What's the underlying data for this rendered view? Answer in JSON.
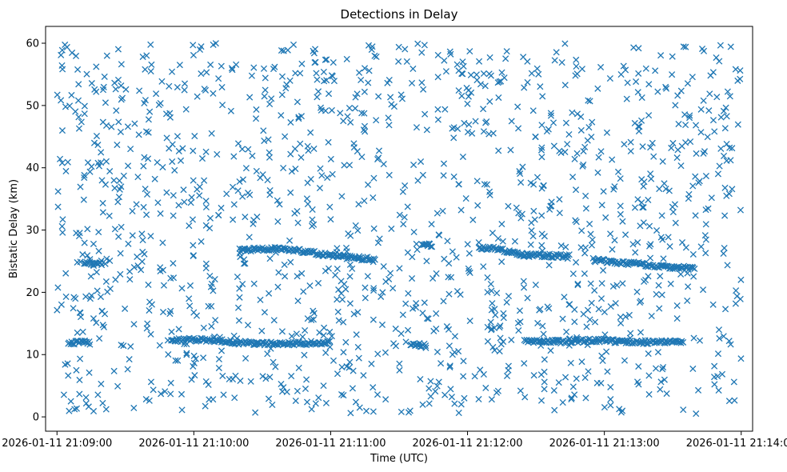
{
  "chart_data": {
    "type": "scatter",
    "title": "Detections in Delay",
    "xlabel": "Time (UTC)",
    "ylabel": "Bistatic Delay (km)",
    "x_ticks": [
      "2026-01-11 21:09:00",
      "2026-01-11 21:10:00",
      "2026-01-11 21:11:00",
      "2026-01-11 21:12:00",
      "2026-01-11 21:13:00",
      "2026-01-11 21:14:00"
    ],
    "xlim": [
      "2026-01-11 21:08:55",
      "2026-01-11 21:14:05"
    ],
    "y_ticks": [
      0,
      10,
      20,
      30,
      40,
      50,
      60
    ],
    "ylim": [
      -2.3,
      62.7
    ],
    "grid": false,
    "marker": "x",
    "color": "#1f77b4",
    "series": [
      {
        "name": "",
        "noise_points_approx": 1400,
        "noise_time_range": [
          "2026-01-11 21:09:00",
          "2026-01-11 21:14:00"
        ],
        "noise_delay_range": [
          0.5,
          60
        ],
        "tracks": [
          {
            "points": [
              [
                "2026-01-11 21:09:05",
                11.8
              ],
              [
                "2026-01-11 21:09:10",
                12.0
              ],
              [
                "2026-01-11 21:09:15",
                11.9
              ]
            ]
          },
          {
            "points": [
              [
                "2026-01-11 21:09:12",
                24.8
              ],
              [
                "2026-01-11 21:09:17",
                24.5
              ],
              [
                "2026-01-11 21:09:20",
                24.6
              ]
            ]
          },
          {
            "points": [
              [
                "2026-01-11 21:09:50",
                12.3
              ],
              [
                "2026-01-11 21:10:05",
                12.4
              ],
              [
                "2026-01-11 21:10:20",
                11.9
              ],
              [
                "2026-01-11 21:10:40",
                11.7
              ],
              [
                "2026-01-11 21:11:00",
                12.0
              ]
            ]
          },
          {
            "points": [
              [
                "2026-01-11 21:10:20",
                26.8
              ],
              [
                "2026-01-11 21:10:40",
                27.0
              ],
              [
                "2026-01-11 21:10:55",
                26.2
              ],
              [
                "2026-01-11 21:11:10",
                25.5
              ],
              [
                "2026-01-11 21:11:20",
                25.3
              ]
            ]
          },
          {
            "points": [
              [
                "2026-01-11 21:11:35",
                11.6
              ],
              [
                "2026-01-11 21:11:42",
                11.5
              ]
            ]
          },
          {
            "points": [
              [
                "2026-01-11 21:11:40",
                27.8
              ],
              [
                "2026-01-11 21:11:45",
                27.6
              ]
            ]
          },
          {
            "points": [
              [
                "2026-01-11 21:12:05",
                27.0
              ],
              [
                "2026-01-11 21:12:10",
                27.2
              ],
              [
                "2026-01-11 21:12:25",
                26.0
              ],
              [
                "2026-01-11 21:12:45",
                25.8
              ]
            ]
          },
          {
            "points": [
              [
                "2026-01-11 21:12:25",
                12.2
              ],
              [
                "2026-01-11 21:12:40",
                12.1
              ],
              [
                "2026-01-11 21:12:55",
                12.3
              ],
              [
                "2026-01-11 21:13:15",
                12.0
              ],
              [
                "2026-01-11 21:13:35",
                12.0
              ]
            ]
          },
          {
            "points": [
              [
                "2026-01-11 21:12:55",
                25.2
              ],
              [
                "2026-01-11 21:13:10",
                24.7
              ],
              [
                "2026-01-11 21:13:25",
                24.2
              ],
              [
                "2026-01-11 21:13:40",
                23.8
              ]
            ]
          }
        ]
      }
    ]
  }
}
